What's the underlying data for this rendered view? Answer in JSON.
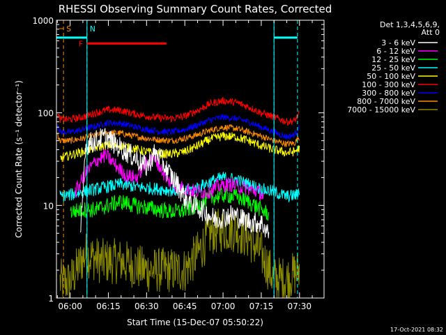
{
  "chart_data": {
    "type": "line",
    "title": "RHESSI Observing Summary Count Rates, Corrected",
    "ylabel": "Corrected Count Rate (s⁻¹ detector⁻¹)",
    "xlabel": "Start Time (15-Dec-07 05:50:22)",
    "y_scale": "log",
    "ylim": [
      1,
      1000
    ],
    "y_ticks": [
      1,
      10,
      100,
      1000
    ],
    "y_tick_labels": [
      "1",
      "10",
      "100",
      "1000"
    ],
    "xlim_minutes": [
      -5.37,
      99.63
    ],
    "x_ticks": [
      {
        "label": "06:00",
        "m": 0
      },
      {
        "label": "06:15",
        "m": 15
      },
      {
        "label": "06:30",
        "m": 30
      },
      {
        "label": "06:45",
        "m": 45
      },
      {
        "label": "07:00",
        "m": 60
      },
      {
        "label": "07:15",
        "m": 75
      },
      {
        "label": "07:30",
        "m": 90
      }
    ],
    "legend_header": [
      "Det 1,3,4,5,6,9,",
      "Att 0"
    ],
    "legend_placement": "right",
    "series": [
      {
        "name": "3 - 6 keV",
        "color": "#ffffff",
        "points": [
          [
            4,
            4
          ],
          [
            6,
            45
          ],
          [
            10,
            50
          ],
          [
            14,
            55
          ],
          [
            18,
            45
          ],
          [
            22,
            38
          ],
          [
            26,
            32
          ],
          [
            30,
            26
          ],
          [
            33,
            36
          ],
          [
            35,
            34
          ],
          [
            38,
            24
          ],
          [
            42,
            17
          ],
          [
            45,
            12
          ],
          [
            49,
            10
          ],
          [
            53,
            8.5
          ],
          [
            57,
            7
          ],
          [
            60,
            7.5
          ],
          [
            64,
            8
          ],
          [
            68,
            7
          ],
          [
            72,
            6.5
          ],
          [
            75,
            6.5
          ],
          [
            78,
            5
          ]
        ],
        "noise": 0.12
      },
      {
        "name": "6 - 12 keV",
        "color": "#ff00ff",
        "points": [
          [
            2,
            14
          ],
          [
            6,
            22
          ],
          [
            10,
            30
          ],
          [
            14,
            35
          ],
          [
            18,
            27
          ],
          [
            22,
            21
          ],
          [
            26,
            20
          ],
          [
            29,
            27
          ],
          [
            32,
            32
          ],
          [
            34,
            30
          ],
          [
            38,
            19
          ],
          [
            42,
            16
          ],
          [
            46,
            15
          ],
          [
            50,
            14
          ],
          [
            54,
            14
          ],
          [
            58,
            16
          ],
          [
            62,
            17
          ],
          [
            66,
            16
          ],
          [
            70,
            15
          ],
          [
            74,
            14
          ],
          [
            76,
            12
          ]
        ],
        "noise": 0.08
      },
      {
        "name": "12 - 25 keV",
        "color": "#00ff00",
        "points": [
          [
            0,
            8.5
          ],
          [
            5,
            9
          ],
          [
            10,
            9
          ],
          [
            15,
            10
          ],
          [
            20,
            11
          ],
          [
            25,
            10
          ],
          [
            30,
            9.5
          ],
          [
            35,
            9
          ],
          [
            40,
            8.5
          ],
          [
            45,
            8.8
          ],
          [
            50,
            10
          ],
          [
            55,
            12
          ],
          [
            60,
            13
          ],
          [
            65,
            12.5
          ],
          [
            70,
            11
          ],
          [
            75,
            9
          ],
          [
            78,
            8
          ]
        ],
        "noise": 0.09
      },
      {
        "name": "25 - 50 keV",
        "color": "#00ffff",
        "points": [
          [
            -4,
            12.5
          ],
          [
            0,
            13
          ],
          [
            5,
            14
          ],
          [
            10,
            15
          ],
          [
            15,
            16
          ],
          [
            20,
            17
          ],
          [
            25,
            16
          ],
          [
            30,
            15.5
          ],
          [
            35,
            15
          ],
          [
            40,
            14.5
          ],
          [
            45,
            14.5
          ],
          [
            50,
            15.5
          ],
          [
            55,
            18
          ],
          [
            60,
            20
          ],
          [
            65,
            19
          ],
          [
            70,
            17
          ],
          [
            75,
            15
          ],
          [
            80,
            14
          ],
          [
            85,
            12.5
          ],
          [
            89,
            13
          ],
          [
            90,
            15
          ]
        ],
        "noise": 0.07
      },
      {
        "name": "50 - 100 keV",
        "color": "#ffff00",
        "points": [
          [
            -4,
            32
          ],
          [
            0,
            35
          ],
          [
            5,
            38
          ],
          [
            10,
            42
          ],
          [
            15,
            45
          ],
          [
            20,
            44
          ],
          [
            25,
            41
          ],
          [
            30,
            38
          ],
          [
            35,
            36
          ],
          [
            40,
            36
          ],
          [
            45,
            38
          ],
          [
            50,
            44
          ],
          [
            55,
            52
          ],
          [
            60,
            56
          ],
          [
            65,
            55
          ],
          [
            70,
            50
          ],
          [
            75,
            44
          ],
          [
            80,
            40
          ],
          [
            85,
            37
          ],
          [
            88,
            38
          ],
          [
            90,
            42
          ]
        ],
        "noise": 0.05
      },
      {
        "name": "100 - 300 keV",
        "color": "#ff0000",
        "points": [
          [
            -5,
            100
          ],
          [
            -4,
            85
          ],
          [
            0,
            85
          ],
          [
            5,
            90
          ],
          [
            10,
            100
          ],
          [
            15,
            108
          ],
          [
            20,
            106
          ],
          [
            25,
            98
          ],
          [
            30,
            92
          ],
          [
            35,
            88
          ],
          [
            40,
            87
          ],
          [
            45,
            92
          ],
          [
            50,
            106
          ],
          [
            55,
            126
          ],
          [
            60,
            135
          ],
          [
            65,
            130
          ],
          [
            70,
            116
          ],
          [
            75,
            100
          ],
          [
            80,
            90
          ],
          [
            85,
            80
          ],
          [
            88,
            82
          ],
          [
            90,
            98
          ]
        ],
        "noise": 0.04
      },
      {
        "name": "300 - 800 keV",
        "color": "#0000ff",
        "points": [
          [
            -5,
            75
          ],
          [
            -4,
            62
          ],
          [
            0,
            62
          ],
          [
            5,
            66
          ],
          [
            10,
            72
          ],
          [
            15,
            78
          ],
          [
            20,
            77
          ],
          [
            25,
            71
          ],
          [
            30,
            66
          ],
          [
            35,
            63
          ],
          [
            40,
            62
          ],
          [
            45,
            66
          ],
          [
            50,
            74
          ],
          [
            55,
            84
          ],
          [
            60,
            90
          ],
          [
            65,
            87
          ],
          [
            70,
            80
          ],
          [
            75,
            70
          ],
          [
            80,
            62
          ],
          [
            85,
            55
          ],
          [
            88,
            58
          ],
          [
            90,
            70
          ]
        ],
        "noise": 0.035
      },
      {
        "name": "800 - 7000 keV",
        "color": "#ff8c00",
        "points": [
          [
            -5,
            60
          ],
          [
            -4,
            50
          ],
          [
            0,
            50
          ],
          [
            5,
            53
          ],
          [
            10,
            57
          ],
          [
            15,
            61
          ],
          [
            20,
            60
          ],
          [
            25,
            56
          ],
          [
            30,
            53
          ],
          [
            35,
            51
          ],
          [
            40,
            50
          ],
          [
            45,
            53
          ],
          [
            50,
            58
          ],
          [
            55,
            65
          ],
          [
            60,
            70
          ],
          [
            65,
            68
          ],
          [
            70,
            62
          ],
          [
            75,
            56
          ],
          [
            80,
            50
          ],
          [
            85,
            46
          ],
          [
            88,
            47
          ],
          [
            90,
            55
          ]
        ],
        "noise": 0.035
      },
      {
        "name": "7000 - 15000 keV",
        "color": "#8b8b00",
        "points": [
          [
            -4,
            1.5
          ],
          [
            0,
            1.5
          ],
          [
            6,
            3
          ],
          [
            12,
            2.5
          ],
          [
            20,
            2.5
          ],
          [
            30,
            2
          ],
          [
            40,
            2
          ],
          [
            45,
            2
          ],
          [
            50,
            3
          ],
          [
            55,
            5
          ],
          [
            60,
            5.5
          ],
          [
            65,
            5.5
          ],
          [
            70,
            4.5
          ],
          [
            75,
            3
          ],
          [
            80,
            1.6
          ],
          [
            85,
            1.6
          ],
          [
            90,
            2
          ]
        ],
        "noise": 0.25
      }
    ],
    "attenuator_flags": [
      {
        "label": "S",
        "color": "#ff8c00",
        "kind": "vline",
        "m": -2.6
      },
      {
        "label": "N",
        "color": "#00ffff",
        "kind": "vline",
        "m": 6.6
      },
      {
        "label": "",
        "color": "#00ffff",
        "kind": "vline",
        "m": 80.0
      },
      {
        "label": "",
        "color": "#00ffff",
        "kind": "vline",
        "m": 89.2
      }
    ],
    "flag_bars": [
      {
        "label": "",
        "color": "#00ffff",
        "m0": -5.37,
        "m1": 6.6,
        "y": 650
      },
      {
        "label": "",
        "color": "#00ffff",
        "m0": 80.0,
        "m1": 89.2,
        "y": 650
      },
      {
        "label": "F",
        "color": "#ff0000",
        "m0": 6.6,
        "m1": 37.8,
        "y": 560
      }
    ],
    "solid_vlines": [
      {
        "color": "#00ffff",
        "m": 6.6
      },
      {
        "color": "#00ffff",
        "m": 80.0
      }
    ]
  },
  "timestamp": "17-Oct-2021 08:32"
}
